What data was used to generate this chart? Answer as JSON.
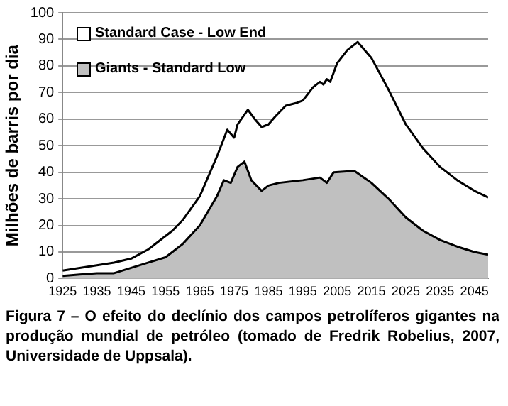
{
  "chart_data": {
    "type": "area",
    "ylabel": "Milhões de barris por dia",
    "xlim": [
      1925,
      2049
    ],
    "xticks": [
      1925,
      1935,
      1945,
      1955,
      1965,
      1975,
      1985,
      1995,
      2005,
      2015,
      2025,
      2035,
      2045
    ],
    "ylim": [
      0,
      100
    ],
    "yticks": [
      0,
      10,
      20,
      30,
      40,
      50,
      60,
      70,
      80,
      90,
      100
    ],
    "grid": "y",
    "legend": "top left",
    "series": [
      {
        "name": "Standard Case - Low End",
        "color": "#ffffff",
        "x": [
          1925,
          1930,
          1935,
          1940,
          1945,
          1950,
          1955,
          1957,
          1960,
          1965,
          1970,
          1973,
          1975,
          1976,
          1979,
          1981,
          1983,
          1985,
          1987,
          1990,
          1993,
          1995,
          1998,
          2000,
          2001,
          2002,
          2003,
          2005,
          2008,
          2011,
          2015,
          2020,
          2025,
          2030,
          2035,
          2040,
          2045,
          2049
        ],
        "values": [
          3,
          4,
          5,
          6,
          7.5,
          11,
          16,
          18,
          22,
          31,
          46,
          56,
          53,
          58,
          63.5,
          60,
          57,
          58,
          61,
          65,
          66,
          67,
          72,
          74,
          73,
          75,
          74,
          81,
          86,
          89,
          83,
          71,
          58,
          49,
          42,
          37,
          33,
          30.5
        ]
      },
      {
        "name": "Giants - Standard Low",
        "color": "#c0c0c0",
        "x": [
          1925,
          1930,
          1935,
          1940,
          1945,
          1950,
          1955,
          1960,
          1965,
          1970,
          1972,
          1974,
          1976,
          1978,
          1980,
          1983,
          1985,
          1988,
          1995,
          2000,
          2002,
          2004,
          2010,
          2015,
          2020,
          2025,
          2030,
          2035,
          2040,
          2045,
          2049
        ],
        "values": [
          1,
          1.5,
          2,
          2,
          4,
          6,
          8,
          13,
          20,
          31,
          37,
          36,
          42,
          44,
          37,
          33,
          35,
          36,
          37,
          38,
          36,
          40,
          40.5,
          36,
          30,
          23,
          18,
          14.5,
          12,
          10,
          9
        ]
      }
    ],
    "annotations": [
      "Figura 7 – O efeito do declínio dos campos petrolíferos gigantes na produção mundial de petróleo (tomado de Fredrik Robelius, 2007, Universidade de Uppsala)."
    ]
  }
}
